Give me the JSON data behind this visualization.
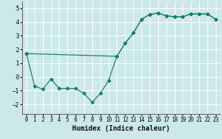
{
  "xlabel": "Humidex (Indice chaleur)",
  "ylabel": "",
  "xlim": [
    -0.5,
    23.5
  ],
  "ylim": [
    -2.7,
    5.5
  ],
  "bg_color": "#cce8e8",
  "line_color": "#1a7a6e",
  "grid_color": "#ffffff",
  "line1_x": [
    0,
    1,
    2,
    3,
    4,
    5,
    6,
    7,
    8,
    9,
    10,
    11,
    12,
    13,
    14,
    15,
    16,
    17,
    18,
    19,
    20,
    21,
    22,
    23
  ],
  "line1_y": [
    1.7,
    -0.65,
    -0.9,
    -0.15,
    -0.85,
    -0.85,
    -0.85,
    -1.2,
    -1.85,
    -1.2,
    -0.25,
    1.5,
    2.45,
    3.2,
    4.2,
    4.55,
    4.65,
    4.45,
    4.38,
    4.38,
    4.6,
    4.58,
    4.58,
    4.2
  ],
  "line2_x": [
    0,
    11,
    12,
    13,
    14,
    15,
    16,
    17,
    18,
    19,
    20,
    21,
    22,
    23
  ],
  "line2_y": [
    1.7,
    1.5,
    2.45,
    3.2,
    4.2,
    4.55,
    4.65,
    4.45,
    4.38,
    4.38,
    4.6,
    4.58,
    4.58,
    4.2
  ],
  "xtick_fontsize": 5.5,
  "ytick_fontsize": 6,
  "xlabel_fontsize": 7,
  "marker": "D",
  "markersize": 2.2,
  "linewidth": 0.9
}
